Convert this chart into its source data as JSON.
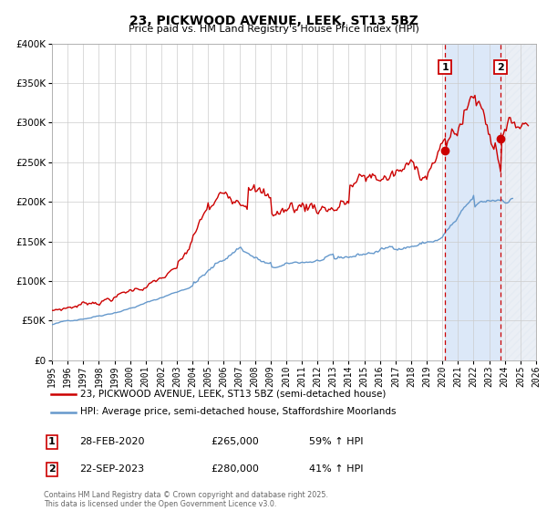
{
  "title": "23, PICKWOOD AVENUE, LEEK, ST13 5BZ",
  "subtitle": "Price paid vs. HM Land Registry's House Price Index (HPI)",
  "legend_line1": "23, PICKWOOD AVENUE, LEEK, ST13 5BZ (semi-detached house)",
  "legend_line2": "HPI: Average price, semi-detached house, Staffordshire Moorlands",
  "red_color": "#cc0000",
  "blue_color": "#6699cc",
  "annotation1_date": "28-FEB-2020",
  "annotation1_price": "£265,000",
  "annotation1_hpi": "59% ↑ HPI",
  "annotation1_year": 2020.17,
  "annotation1_value": 265000,
  "annotation2_date": "22-SEP-2023",
  "annotation2_price": "£280,000",
  "annotation2_hpi": "41% ↑ HPI",
  "annotation2_year": 2023.73,
  "annotation2_value": 280000,
  "footer": "Contains HM Land Registry data © Crown copyright and database right 2025.\nThis data is licensed under the Open Government Licence v3.0.",
  "ylim": [
    0,
    400000
  ],
  "xlim_start": 1995,
  "xlim_end": 2026,
  "plot_bg_color": "#ffffff",
  "shade_color": "#dce8f8"
}
